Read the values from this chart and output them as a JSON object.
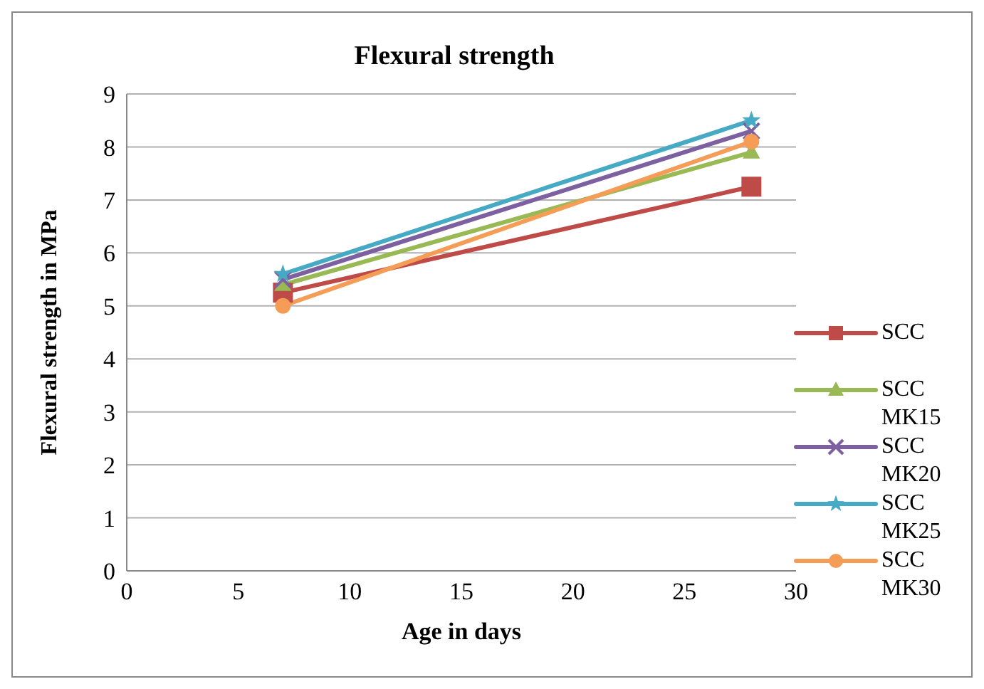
{
  "chart_data": {
    "type": "line",
    "title": "Flexural strength",
    "xlabel": "Age in days",
    "ylabel": "Flexural strength in MPa",
    "x": [
      7,
      28
    ],
    "series": [
      {
        "name": "SCC",
        "color": "#be4b48",
        "marker": "square",
        "values": [
          5.25,
          7.25
        ]
      },
      {
        "name": "SCC MK15",
        "color": "#98b954",
        "marker": "triangle",
        "values": [
          5.4,
          7.9
        ]
      },
      {
        "name": "SCC MK20",
        "color": "#7d60a0",
        "marker": "cross",
        "values": [
          5.5,
          8.3
        ]
      },
      {
        "name": "SCC MK25",
        "color": "#46aac5",
        "marker": "star",
        "values": [
          5.6,
          8.5
        ]
      },
      {
        "name": "SCC MK30",
        "color": "#f59d56",
        "marker": "circle",
        "values": [
          5.0,
          8.1
        ]
      }
    ],
    "xlim": [
      0,
      30
    ],
    "xticks": [
      0,
      5,
      10,
      15,
      20,
      25,
      30
    ],
    "ylim": [
      0,
      9
    ],
    "yticks": [
      0,
      1,
      2,
      3,
      4,
      5,
      6,
      7,
      8,
      9
    ],
    "grid": "y",
    "legend": "right"
  }
}
